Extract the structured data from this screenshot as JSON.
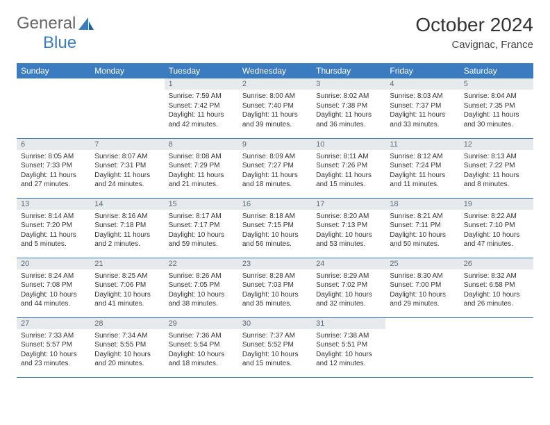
{
  "logo": {
    "text_a": "General",
    "text_b": "Blue"
  },
  "title": "October 2024",
  "location": "Cavignac, France",
  "colors": {
    "header_bg": "#3b7bbf",
    "header_fg": "#ffffff",
    "daynum_bg": "#e7eaec",
    "daynum_fg": "#5c6a78",
    "rule": "#3b7bbf",
    "body_fg": "#333333"
  },
  "weekdays": [
    "Sunday",
    "Monday",
    "Tuesday",
    "Wednesday",
    "Thursday",
    "Friday",
    "Saturday"
  ],
  "weeks": [
    [
      null,
      null,
      {
        "n": 1,
        "sunrise": "7:59 AM",
        "sunset": "7:42 PM",
        "daylight": "11 hours and 42 minutes."
      },
      {
        "n": 2,
        "sunrise": "8:00 AM",
        "sunset": "7:40 PM",
        "daylight": "11 hours and 39 minutes."
      },
      {
        "n": 3,
        "sunrise": "8:02 AM",
        "sunset": "7:38 PM",
        "daylight": "11 hours and 36 minutes."
      },
      {
        "n": 4,
        "sunrise": "8:03 AM",
        "sunset": "7:37 PM",
        "daylight": "11 hours and 33 minutes."
      },
      {
        "n": 5,
        "sunrise": "8:04 AM",
        "sunset": "7:35 PM",
        "daylight": "11 hours and 30 minutes."
      }
    ],
    [
      {
        "n": 6,
        "sunrise": "8:05 AM",
        "sunset": "7:33 PM",
        "daylight": "11 hours and 27 minutes."
      },
      {
        "n": 7,
        "sunrise": "8:07 AM",
        "sunset": "7:31 PM",
        "daylight": "11 hours and 24 minutes."
      },
      {
        "n": 8,
        "sunrise": "8:08 AM",
        "sunset": "7:29 PM",
        "daylight": "11 hours and 21 minutes."
      },
      {
        "n": 9,
        "sunrise": "8:09 AM",
        "sunset": "7:27 PM",
        "daylight": "11 hours and 18 minutes."
      },
      {
        "n": 10,
        "sunrise": "8:11 AM",
        "sunset": "7:26 PM",
        "daylight": "11 hours and 15 minutes."
      },
      {
        "n": 11,
        "sunrise": "8:12 AM",
        "sunset": "7:24 PM",
        "daylight": "11 hours and 11 minutes."
      },
      {
        "n": 12,
        "sunrise": "8:13 AM",
        "sunset": "7:22 PM",
        "daylight": "11 hours and 8 minutes."
      }
    ],
    [
      {
        "n": 13,
        "sunrise": "8:14 AM",
        "sunset": "7:20 PM",
        "daylight": "11 hours and 5 minutes."
      },
      {
        "n": 14,
        "sunrise": "8:16 AM",
        "sunset": "7:18 PM",
        "daylight": "11 hours and 2 minutes."
      },
      {
        "n": 15,
        "sunrise": "8:17 AM",
        "sunset": "7:17 PM",
        "daylight": "10 hours and 59 minutes."
      },
      {
        "n": 16,
        "sunrise": "8:18 AM",
        "sunset": "7:15 PM",
        "daylight": "10 hours and 56 minutes."
      },
      {
        "n": 17,
        "sunrise": "8:20 AM",
        "sunset": "7:13 PM",
        "daylight": "10 hours and 53 minutes."
      },
      {
        "n": 18,
        "sunrise": "8:21 AM",
        "sunset": "7:11 PM",
        "daylight": "10 hours and 50 minutes."
      },
      {
        "n": 19,
        "sunrise": "8:22 AM",
        "sunset": "7:10 PM",
        "daylight": "10 hours and 47 minutes."
      }
    ],
    [
      {
        "n": 20,
        "sunrise": "8:24 AM",
        "sunset": "7:08 PM",
        "daylight": "10 hours and 44 minutes."
      },
      {
        "n": 21,
        "sunrise": "8:25 AM",
        "sunset": "7:06 PM",
        "daylight": "10 hours and 41 minutes."
      },
      {
        "n": 22,
        "sunrise": "8:26 AM",
        "sunset": "7:05 PM",
        "daylight": "10 hours and 38 minutes."
      },
      {
        "n": 23,
        "sunrise": "8:28 AM",
        "sunset": "7:03 PM",
        "daylight": "10 hours and 35 minutes."
      },
      {
        "n": 24,
        "sunrise": "8:29 AM",
        "sunset": "7:02 PM",
        "daylight": "10 hours and 32 minutes."
      },
      {
        "n": 25,
        "sunrise": "8:30 AM",
        "sunset": "7:00 PM",
        "daylight": "10 hours and 29 minutes."
      },
      {
        "n": 26,
        "sunrise": "8:32 AM",
        "sunset": "6:58 PM",
        "daylight": "10 hours and 26 minutes."
      }
    ],
    [
      {
        "n": 27,
        "sunrise": "7:33 AM",
        "sunset": "5:57 PM",
        "daylight": "10 hours and 23 minutes."
      },
      {
        "n": 28,
        "sunrise": "7:34 AM",
        "sunset": "5:55 PM",
        "daylight": "10 hours and 20 minutes."
      },
      {
        "n": 29,
        "sunrise": "7:36 AM",
        "sunset": "5:54 PM",
        "daylight": "10 hours and 18 minutes."
      },
      {
        "n": 30,
        "sunrise": "7:37 AM",
        "sunset": "5:52 PM",
        "daylight": "10 hours and 15 minutes."
      },
      {
        "n": 31,
        "sunrise": "7:38 AM",
        "sunset": "5:51 PM",
        "daylight": "10 hours and 12 minutes."
      },
      null,
      null
    ]
  ],
  "labels": {
    "sunrise": "Sunrise:",
    "sunset": "Sunset:",
    "daylight": "Daylight:"
  }
}
